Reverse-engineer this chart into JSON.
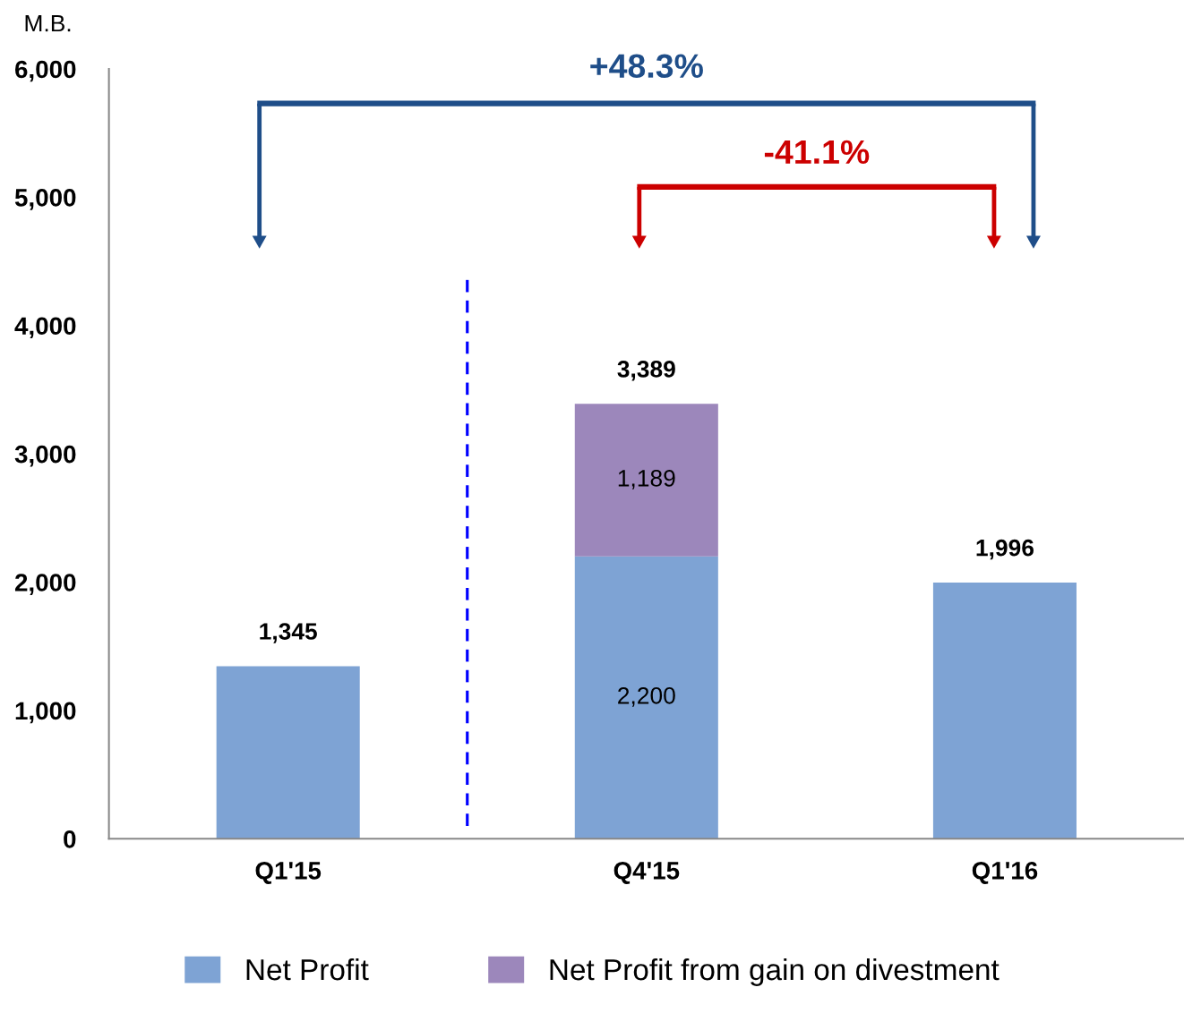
{
  "chart_data": {
    "type": "bar",
    "stacked": true,
    "ylabel": "M.B.",
    "categories": [
      "Q1'15",
      "Q4'15",
      "Q1'16"
    ],
    "series": [
      {
        "name": "Net Profit",
        "color": "#7ea3d4",
        "values": [
          1345,
          2200,
          1996
        ],
        "value_labels": [
          null,
          "2,200",
          null
        ]
      },
      {
        "name": "Net Profit from gain on divestment",
        "color": "#9c87bb",
        "values": [
          null,
          1189,
          null
        ],
        "value_labels": [
          null,
          "1,189",
          null
        ]
      }
    ],
    "totals": [
      "1,345",
      "3,389",
      "1,996"
    ],
    "ylim": [
      0,
      6000
    ],
    "yticks": [
      {
        "value": 0,
        "label": "0"
      },
      {
        "value": 1000,
        "label": "1,000"
      },
      {
        "value": 2000,
        "label": "2,000"
      },
      {
        "value": 3000,
        "label": "3,000"
      },
      {
        "value": 4000,
        "label": "4,000"
      },
      {
        "value": 5000,
        "label": "5,000"
      },
      {
        "value": 6000,
        "label": "6,000"
      }
    ],
    "annotations": [
      "+48.3%",
      "-41.1%"
    ],
    "grid": false,
    "legend": "bottom"
  }
}
